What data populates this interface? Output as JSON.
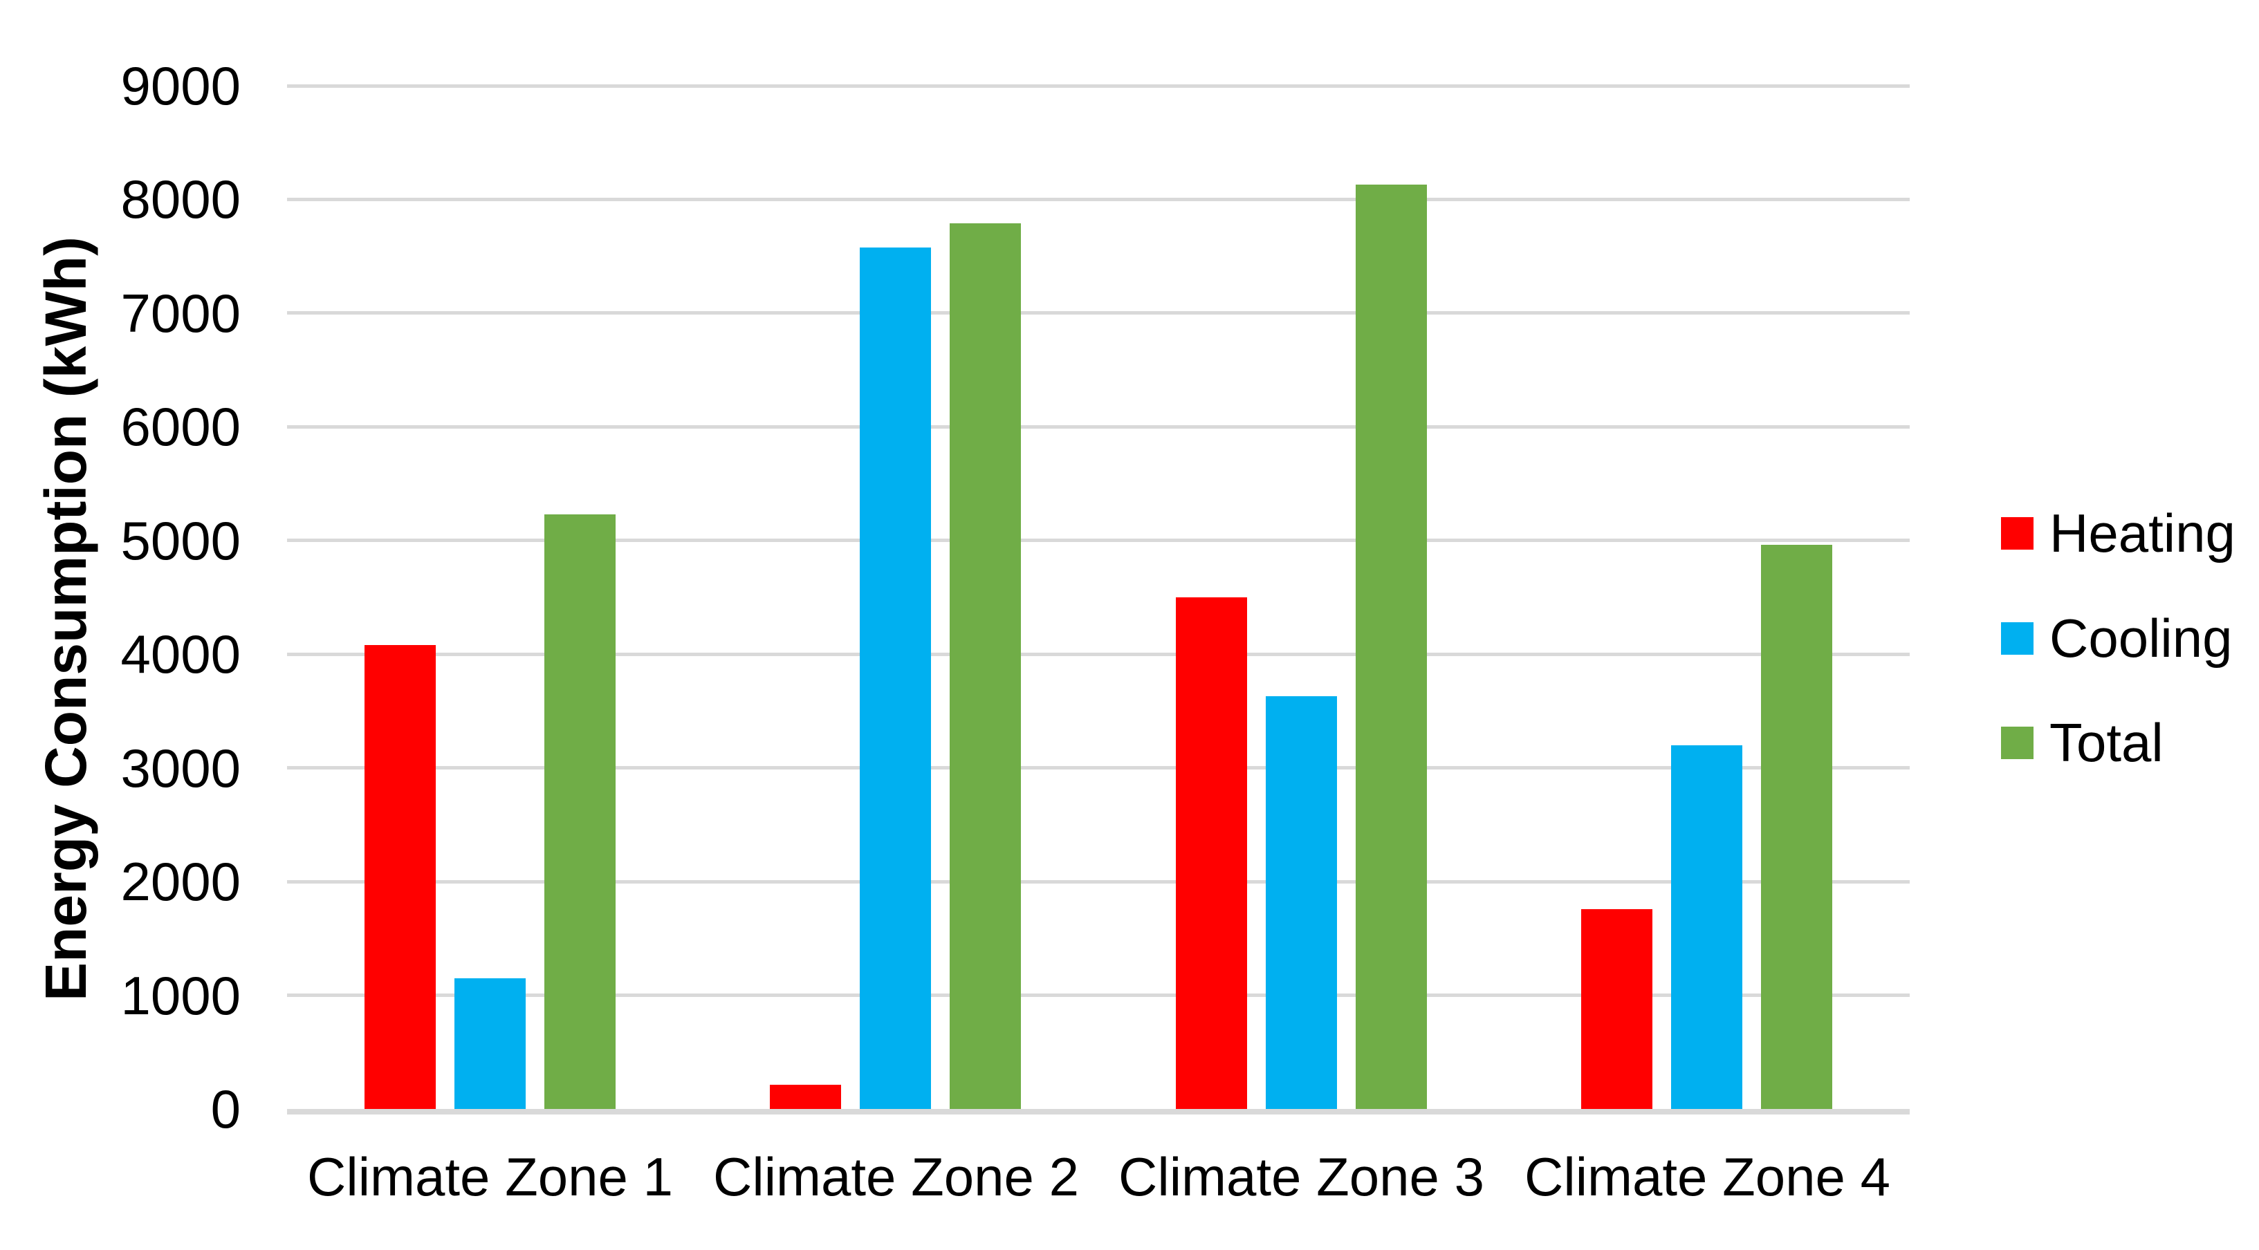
{
  "chart_data": {
    "type": "bar",
    "title": "",
    "categories": [
      "Climate Zone 1",
      "Climate Zone 2",
      "Climate Zone 3",
      "Climate Zone 4"
    ],
    "series": [
      {
        "name": "Heating",
        "color": "#FF0000",
        "values": [
          4080,
          210,
          4500,
          1760
        ]
      },
      {
        "name": "Cooling",
        "color": "#00B0F0",
        "values": [
          1150,
          7580,
          3630,
          3200
        ]
      },
      {
        "name": "Total",
        "color": "#70AD47",
        "values": [
          5230,
          7790,
          8130,
          4960
        ]
      }
    ],
    "xlabel": "",
    "ylabel": "Energy Consumption (kWh)",
    "ylim": [
      0,
      9000
    ],
    "yticks": [
      0,
      1000,
      2000,
      3000,
      4000,
      5000,
      6000,
      7000,
      8000,
      9000
    ],
    "grid": "horizontal-only",
    "legend_position": "right"
  },
  "colors": {
    "gridline": "#D9D9D9",
    "axis_line": "#D9D9D9",
    "text": "#000000",
    "background": "#FFFFFF"
  }
}
